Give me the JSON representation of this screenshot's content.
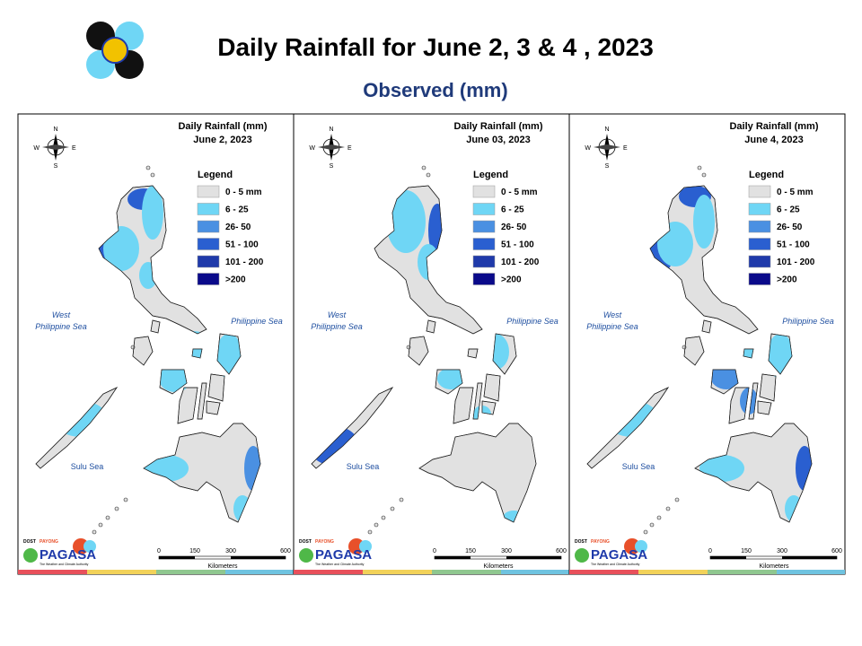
{
  "header": {
    "title": "Daily Rainfall for June 2, 3 & 4 , 2023",
    "subtitle": "Observed (mm)"
  },
  "legend": {
    "title": "Legend",
    "items": [
      {
        "label": "0 - 5 mm",
        "color": "#e1e1e1"
      },
      {
        "label": "6 - 25",
        "color": "#6fd6f5"
      },
      {
        "label": "26- 50",
        "color": "#4a90e2"
      },
      {
        "label": "51 - 100",
        "color": "#2a5fd0"
      },
      {
        "label": "101 - 200",
        "color": "#1f3aaa"
      },
      {
        "label": ">200",
        "color": "#0a0a8a"
      }
    ]
  },
  "panels": [
    {
      "title": "Daily Rainfall (mm)",
      "date": "June 2, 2023"
    },
    {
      "title": "Daily Rainfall (mm)",
      "date": "June 03, 2023"
    },
    {
      "title": "Daily Rainfall (mm)",
      "date": "June 4, 2023"
    }
  ],
  "compass": {
    "n": "N",
    "e": "E",
    "s": "S",
    "w": "W"
  },
  "seas": {
    "west": [
      "West",
      "Philippine Sea"
    ],
    "east": "Philippine Sea",
    "sulu": "Sulu Sea"
  },
  "scale": {
    "ticks": [
      0,
      150,
      300,
      600
    ],
    "unit": "Kilometers"
  },
  "logo": {
    "dost": "DOST",
    "payong": "PAYONG",
    "name": "PAGASA",
    "tagline": "The Weather and Climate Authority"
  }
}
